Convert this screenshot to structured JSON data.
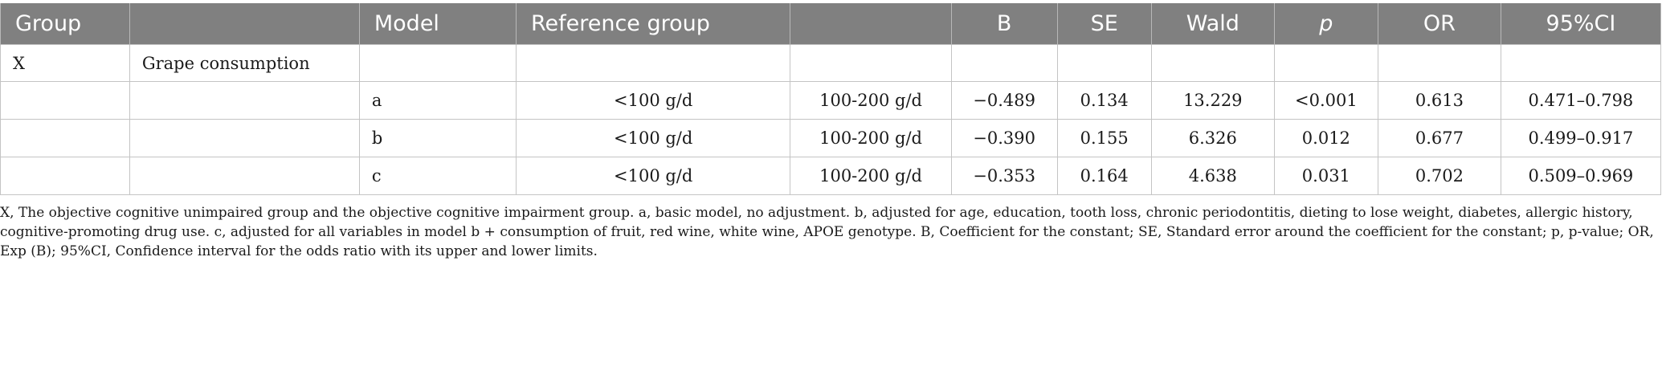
{
  "header": {
    "group": "Group",
    "blank1": "",
    "model": "Model",
    "reference_group": "Reference group",
    "blank2": "",
    "b": "B",
    "se": "SE",
    "wald": "Wald",
    "p": "p",
    "or": "OR",
    "ci": "95%CI"
  },
  "rows": [
    {
      "group": "X",
      "variable": "Grape consumption",
      "model": "",
      "reference": "",
      "comparison": "",
      "b": "",
      "se": "",
      "wald": "",
      "p": "",
      "or": "",
      "ci": ""
    },
    {
      "group": "",
      "variable": "",
      "model": "a",
      "reference": "<100 g/d",
      "comparison": "100-200 g/d",
      "b": "−0.489",
      "se": "0.134",
      "wald": "13.229",
      "p": "<0.001",
      "or": "0.613",
      "ci": "0.471–0.798"
    },
    {
      "group": "",
      "variable": "",
      "model": "b",
      "reference": "<100 g/d",
      "comparison": "100-200 g/d",
      "b": "−0.390",
      "se": "0.155",
      "wald": "6.326",
      "p": "0.012",
      "or": "0.677",
      "ci": "0.499–0.917"
    },
    {
      "group": "",
      "variable": "",
      "model": "c",
      "reference": "<100 g/d",
      "comparison": "100-200 g/d",
      "b": "−0.353",
      "se": "0.164",
      "wald": "4.638",
      "p": "0.031",
      "or": "0.702",
      "ci": "0.509–0.969"
    }
  ],
  "footnote": "X, The objective cognitive unimpaired group and the objective cognitive impairment group. a, basic model, no adjustment. b, adjusted for age, education, tooth loss, chronic periodontitis, dieting to lose weight, diabetes, allergic history, cognitive-promoting drug use. c, adjusted for all variables in model b + consumption of fruit, red wine, white wine, APOE genotype. B, Coefficient for the constant; SE, Standard error around the coefficient for the constant; p, p-value; OR, Exp (B); 95%CI, Confidence interval for the odds ratio with its upper and lower limits."
}
